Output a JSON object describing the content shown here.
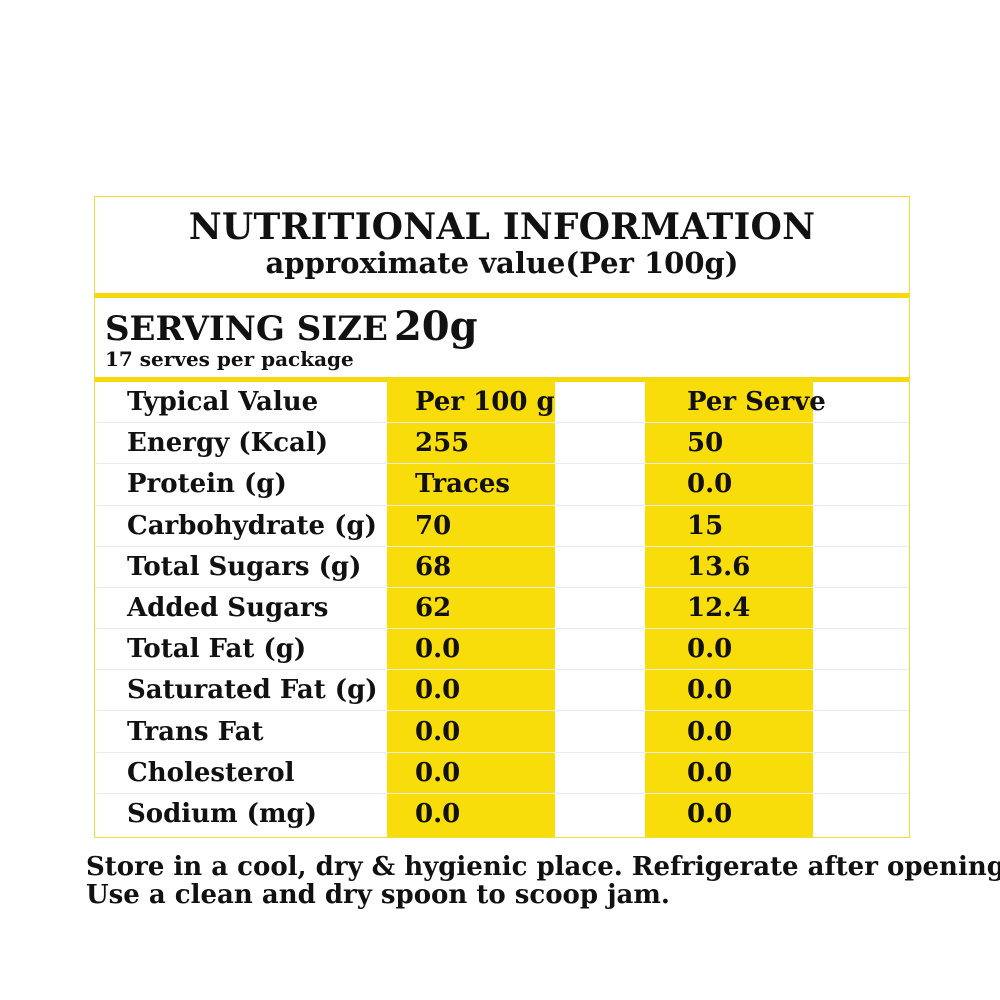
{
  "header": {
    "title": "NUTRITIONAL INFORMATION",
    "subtitle": "approximate value(Per 100g)"
  },
  "serving": {
    "label": "SERVING SIZE",
    "size": "20g",
    "serves": "17 serves per package"
  },
  "colors": {
    "accent_yellow": "#f8dd0a",
    "border_yellow": "#f2dc3a"
  },
  "table": {
    "rows": [
      {
        "label": "Typical Value",
        "per100": "Per 100 g",
        "perserve": "Per Serve"
      },
      {
        "label": "Energy (Kcal)",
        "per100": "255",
        "perserve": "50"
      },
      {
        "label": " Protein (g)",
        "per100": "Traces",
        "perserve": "0.0"
      },
      {
        "label": "Carbohydrate (g)",
        "per100": "70",
        "perserve": "15"
      },
      {
        "label": "Total Sugars (g)",
        "per100": "68",
        "perserve": "13.6"
      },
      {
        "label": "Added Sugars",
        "per100": "62",
        "perserve": "12.4"
      },
      {
        "label": "Total Fat (g)",
        "per100": "0.0",
        "perserve": "0.0"
      },
      {
        "label": "Saturated Fat (g)",
        "per100": "0.0",
        "perserve": "0.0"
      },
      {
        "label": "Trans Fat",
        "per100": "0.0",
        "perserve": "0.0"
      },
      {
        "label": "Cholesterol",
        "per100": "0.0",
        "perserve": "0.0"
      },
      {
        "label": "Sodium (mg)",
        "per100": "0.0",
        "perserve": "0.0"
      }
    ]
  },
  "footer": {
    "line1": "Store in a cool, dry & hygienic place. Refrigerate after opening.",
    "line2": "Use a clean and dry spoon to scoop jam."
  }
}
